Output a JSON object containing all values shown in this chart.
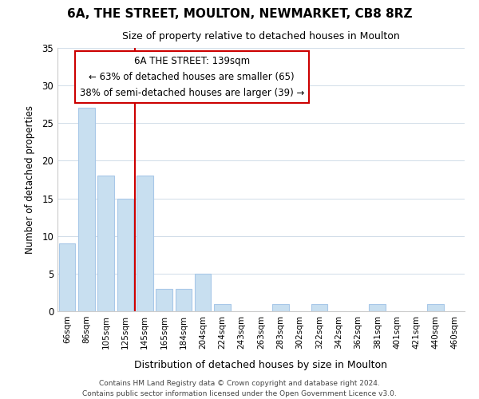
{
  "title": "6A, THE STREET, MOULTON, NEWMARKET, CB8 8RZ",
  "subtitle": "Size of property relative to detached houses in Moulton",
  "xlabel": "Distribution of detached houses by size in Moulton",
  "ylabel": "Number of detached properties",
  "categories": [
    "66sqm",
    "86sqm",
    "105sqm",
    "125sqm",
    "145sqm",
    "165sqm",
    "184sqm",
    "204sqm",
    "224sqm",
    "243sqm",
    "263sqm",
    "283sqm",
    "302sqm",
    "322sqm",
    "342sqm",
    "362sqm",
    "381sqm",
    "401sqm",
    "421sqm",
    "440sqm",
    "460sqm"
  ],
  "values": [
    9,
    27,
    18,
    15,
    18,
    3,
    3,
    5,
    1,
    0,
    0,
    1,
    0,
    1,
    0,
    0,
    1,
    0,
    0,
    1,
    0
  ],
  "bar_color": "#c8dff0",
  "bar_edge_color": "#a8c8e8",
  "vline_color": "#cc0000",
  "vline_index": 3.5,
  "ylim": [
    0,
    35
  ],
  "yticks": [
    0,
    5,
    10,
    15,
    20,
    25,
    30,
    35
  ],
  "annotation_title": "6A THE STREET: 139sqm",
  "annotation_line1": "← 63% of detached houses are smaller (65)",
  "annotation_line2": "38% of semi-detached houses are larger (39) →",
  "annotation_box_color": "#ffffff",
  "annotation_box_edge": "#cc0000",
  "footer1": "Contains HM Land Registry data © Crown copyright and database right 2024.",
  "footer2": "Contains public sector information licensed under the Open Government Licence v3.0.",
  "grid_color": "#d0dce8",
  "title_fontsize": 11,
  "subtitle_fontsize": 9
}
